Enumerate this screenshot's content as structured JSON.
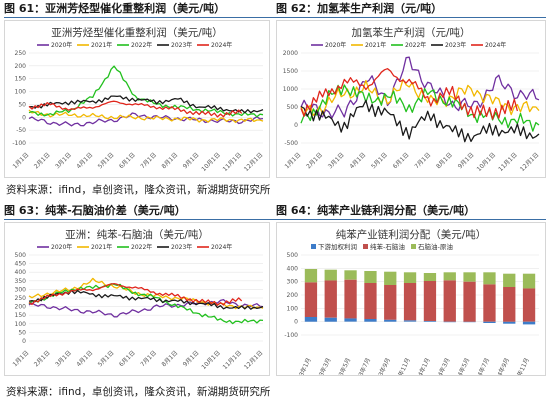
{
  "figures": [
    {
      "label": "图 61：",
      "caption": "亚洲芳烃型催化重整利润（美元/吨）"
    },
    {
      "label": "图 62：",
      "caption": "加氢苯生产利润（元/吨）"
    },
    {
      "label": "图 63：",
      "caption": "纯苯-石脑油价差（美元/吨）"
    },
    {
      "label": "图 64：",
      "caption": "纯苯产业链利润分配（美元/吨）"
    }
  ],
  "sources": [
    "资料来源：ifind，卓创资讯，隆众资讯，新湖期货研究所",
    "资料来源：ifind，卓创资讯，隆众资讯，新湖期货研究所"
  ],
  "colors": {
    "y2020": "#7030a0",
    "y2021": "#f2b800",
    "y2022": "#22c01e",
    "y2023": "#1a1a1a",
    "y2024": "#e0261c",
    "downstream": "#3d7cc9",
    "benzene_naphtha": "#c0504d",
    "naphtha_crude": "#9bbb59",
    "rule": "#3a6ea5"
  },
  "chart_data": [
    {
      "type": "line",
      "title": "亚洲芳烃型催化重整利润（美元/吨）",
      "x": [
        "1月1日",
        "2月1日",
        "3月1日",
        "4月1日",
        "5月1日",
        "6月1日",
        "7月1日",
        "8月1日",
        "9月1日",
        "10月1日",
        "11月1日",
        "12月1日"
      ],
      "ylim": [
        -100,
        250
      ],
      "yticks": [
        -100,
        -50,
        0,
        50,
        100,
        150,
        200,
        250
      ],
      "legend_position": "top",
      "series": [
        {
          "name": "2020年",
          "values": [
            -5,
            -20,
            -30,
            -20,
            -10,
            10,
            0,
            -5,
            -10,
            -15,
            -15,
            -5
          ]
        },
        {
          "name": "2021年",
          "values": [
            20,
            10,
            10,
            5,
            0,
            0,
            -5,
            -5,
            -10,
            -10,
            -10,
            -15
          ]
        },
        {
          "name": "2022年",
          "values": [
            20,
            10,
            30,
            80,
            200,
            80,
            50,
            40,
            30,
            20,
            10,
            10
          ]
        },
        {
          "name": "2023年",
          "values": [
            40,
            50,
            60,
            60,
            80,
            70,
            60,
            70,
            40,
            35,
            20,
            30
          ]
        },
        {
          "name": "2024年",
          "values": [
            40,
            50,
            30,
            40,
            60,
            50,
            40,
            30,
            15,
            10,
            20,
            null
          ]
        }
      ]
    },
    {
      "type": "line",
      "title": "加氢苯生产利润（元/吨）",
      "x": [
        "1月1日",
        "2月1日",
        "3月1日",
        "4月1日",
        "5月1日",
        "6月1日",
        "7月1日",
        "8月1日",
        "9月1日",
        "10月1日",
        "11月1日",
        "12月1日"
      ],
      "ylim": [
        -500,
        2000
      ],
      "yticks": [
        -500,
        0,
        500,
        1000,
        1500,
        2000
      ],
      "legend_position": "top",
      "series": [
        {
          "name": "2020年",
          "values": [
            500,
            400,
            300,
            1300,
            700,
            1800,
            1000,
            600,
            500,
            1200,
            900,
            700
          ]
        },
        {
          "name": "2021年",
          "values": [
            300,
            500,
            900,
            1000,
            700,
            1200,
            600,
            800,
            1000,
            600,
            500,
            400
          ]
        },
        {
          "name": "2022年",
          "values": [
            100,
            600,
            1100,
            700,
            800,
            500,
            900,
            600,
            300,
            200,
            100,
            0
          ]
        },
        {
          "name": "2023年",
          "values": [
            500,
            200,
            0,
            600,
            300,
            -200,
            300,
            -200,
            -300,
            -100,
            -200,
            -250
          ]
        },
        {
          "name": "2024年",
          "values": [
            400,
            800,
            1200,
            1100,
            1500,
            1200,
            700,
            900,
            300,
            400,
            500,
            null
          ]
        }
      ]
    },
    {
      "type": "line",
      "title": "亚洲：纯苯-石脑油（美元/吨）",
      "x": [
        "1月1日",
        "2月1日",
        "3月1日",
        "4月1日",
        "5月1日",
        "6月1日",
        "7月1日",
        "8月1日",
        "9月1日",
        "10月1日",
        "11月1日",
        "12月1日"
      ],
      "ylim": [
        0,
        500
      ],
      "yticks": [
        0,
        50,
        100,
        150,
        200,
        250,
        300,
        350,
        400,
        450,
        500
      ],
      "legend_position": "top",
      "series": [
        {
          "name": "2020年",
          "values": [
            210,
            200,
            180,
            170,
            150,
            170,
            200,
            210,
            220,
            230,
            210,
            200
          ]
        },
        {
          "name": "2021年",
          "values": [
            250,
            280,
            300,
            350,
            320,
            280,
            260,
            250,
            230,
            210,
            200,
            190
          ]
        },
        {
          "name": "2022年",
          "values": [
            220,
            260,
            300,
            310,
            330,
            280,
            250,
            200,
            160,
            120,
            110,
            120
          ]
        },
        {
          "name": "2023年",
          "values": [
            230,
            260,
            290,
            270,
            260,
            250,
            240,
            230,
            220,
            200,
            190,
            200
          ]
        },
        {
          "name": "2024年",
          "values": [
            220,
            260,
            290,
            300,
            330,
            310,
            280,
            260,
            230,
            220,
            240,
            null
          ]
        }
      ]
    },
    {
      "type": "bar",
      "title": "纯苯产业链利润分配（美元/吨）",
      "categories": [
        "2023年1月",
        "2023年3月",
        "2023年5月",
        "2023年7月",
        "2023年9月",
        "2023年11月",
        "2024年1月",
        "2024年3月",
        "2024年5月",
        "2024年7月",
        "2024年9月",
        "2024年11月"
      ],
      "ylim": [
        -100,
        500
      ],
      "yticks": [
        -100,
        0,
        100,
        200,
        300,
        400,
        500
      ],
      "legend_position": "top",
      "series": [
        {
          "name": "下游加权利润",
          "values": [
            35,
            30,
            25,
            20,
            15,
            10,
            5,
            0,
            0,
            -10,
            -15,
            -20
          ]
        },
        {
          "name": "纯苯-石脑油",
          "values": [
            260,
            280,
            290,
            270,
            260,
            280,
            300,
            310,
            300,
            280,
            260,
            250
          ]
        },
        {
          "name": "石脑油-原油",
          "values": [
            100,
            80,
            70,
            90,
            100,
            80,
            60,
            60,
            70,
            90,
            100,
            110
          ]
        }
      ]
    }
  ]
}
